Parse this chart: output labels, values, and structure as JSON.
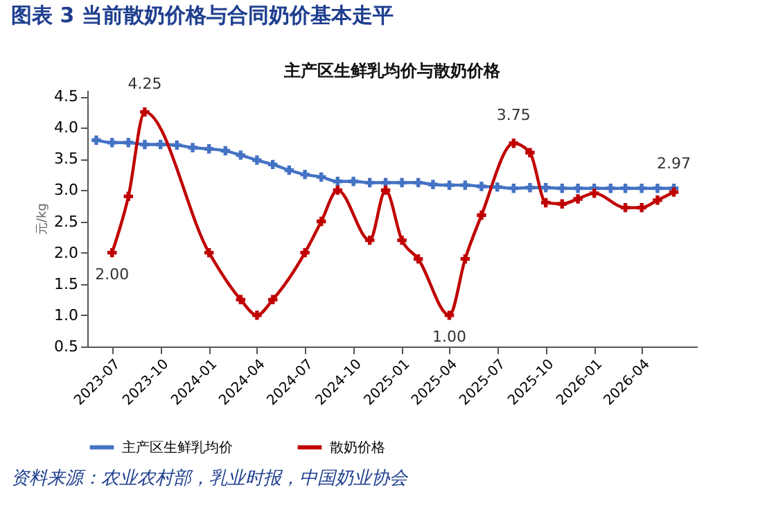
{
  "chart_data": {
    "type": "line",
    "title": "图表 3   当前散奶价格与合同奶价基本走平",
    "subtitle": "主产区生鲜乳均价与散奶价格",
    "ylabel": "元/kg",
    "xlim": [
      "2023-05-15",
      "2026-07-15"
    ],
    "xticks": [
      "2023-07",
      "2023-10",
      "2024-01",
      "2024-04",
      "2024-07",
      "2024-10",
      "2025-01",
      "2025-04",
      "2025-07",
      "2025-10",
      "2026-01",
      "2026-04"
    ],
    "ylim": [
      0.5,
      4.6
    ],
    "yticks": [
      {
        "value": 0.5,
        "label": "0.5"
      },
      {
        "value": 1,
        "label": "1.0"
      },
      {
        "value": 1.5,
        "label": "1.5"
      },
      {
        "value": 2,
        "label": "2.0"
      },
      {
        "value": 2.5,
        "label": "2.5"
      },
      {
        "value": 3,
        "label": "3.0"
      },
      {
        "value": 3.5,
        "label": "3.5"
      },
      {
        "value": 4,
        "label": "4.0"
      },
      {
        "value": 4.5,
        "label": "4.5"
      }
    ],
    "grid": false,
    "legend": "bottom",
    "marker": "cross",
    "line_style": "solid",
    "series": [
      {
        "name": "主产区生鲜乳均价",
        "color": "#4472c4",
        "x": [
          "2023-06",
          "2023-07",
          "2023-08",
          "2023-09",
          "2023-10",
          "2023-11",
          "2023-12",
          "2024-01",
          "2024-02",
          "2024-03",
          "2024-04",
          "2024-05",
          "2024-06",
          "2024-07",
          "2024-08",
          "2024-09",
          "2024-10",
          "2024-11",
          "2024-12",
          "2025-01",
          "2025-02",
          "2025-03",
          "2025-04",
          "2025-05",
          "2025-06",
          "2025-07",
          "2025-08",
          "2025-09",
          "2025-10",
          "2025-11",
          "2025-12",
          "2026-01",
          "2026-02",
          "2026-03",
          "2026-04",
          "2026-05",
          "2026-06"
        ],
        "values": [
          3.8,
          3.76,
          3.76,
          3.73,
          3.73,
          3.72,
          3.68,
          3.66,
          3.63,
          3.56,
          3.48,
          3.41,
          3.32,
          3.25,
          3.21,
          3.14,
          3.14,
          3.12,
          3.12,
          3.12,
          3.12,
          3.09,
          3.08,
          3.08,
          3.06,
          3.05,
          3.03,
          3.04,
          3.04,
          3.03,
          3.03,
          3.03,
          3.03,
          3.03,
          3.03,
          3.03,
          3.03
        ]
      },
      {
        "name": "散奶价格",
        "color": "#c00000",
        "x": [
          "2023-07",
          "2023-08",
          "2023-09",
          "2024-01",
          "2024-03",
          "2024-04",
          "2024-05",
          "2024-07",
          "2024-08",
          "2024-09",
          "2024-11",
          "2024-12",
          "2025-01",
          "2025-02",
          "2025-04",
          "2025-05",
          "2025-06",
          "2025-08",
          "2025-09",
          "2025-10",
          "2025-11",
          "2025-12",
          "2026-01",
          "2026-03",
          "2026-04",
          "2026-05",
          "2026-06"
        ],
        "values": [
          2.0,
          2.9,
          4.25,
          2.0,
          1.25,
          1.0,
          1.25,
          2.0,
          2.5,
          3.0,
          2.2,
          3.0,
          2.2,
          1.9,
          1.0,
          1.9,
          2.6,
          3.75,
          3.6,
          2.8,
          2.78,
          2.86,
          2.95,
          2.72,
          2.72,
          2.84,
          2.97
        ]
      }
    ],
    "annotations": [
      {
        "text": "2.00",
        "x": "2023-07",
        "y": 2.0
      },
      {
        "text": "4.25",
        "x": "2023-09",
        "y": 4.25
      },
      {
        "text": "1.00",
        "x": "2025-04",
        "y": 1.0
      },
      {
        "text": "3.75",
        "x": "2025-08",
        "y": 3.75
      },
      {
        "text": "2.97",
        "x": "2026-06",
        "y": 2.97
      },
      "资料来源：农业农村部，乳业时报，中国奶业协会"
    ]
  }
}
